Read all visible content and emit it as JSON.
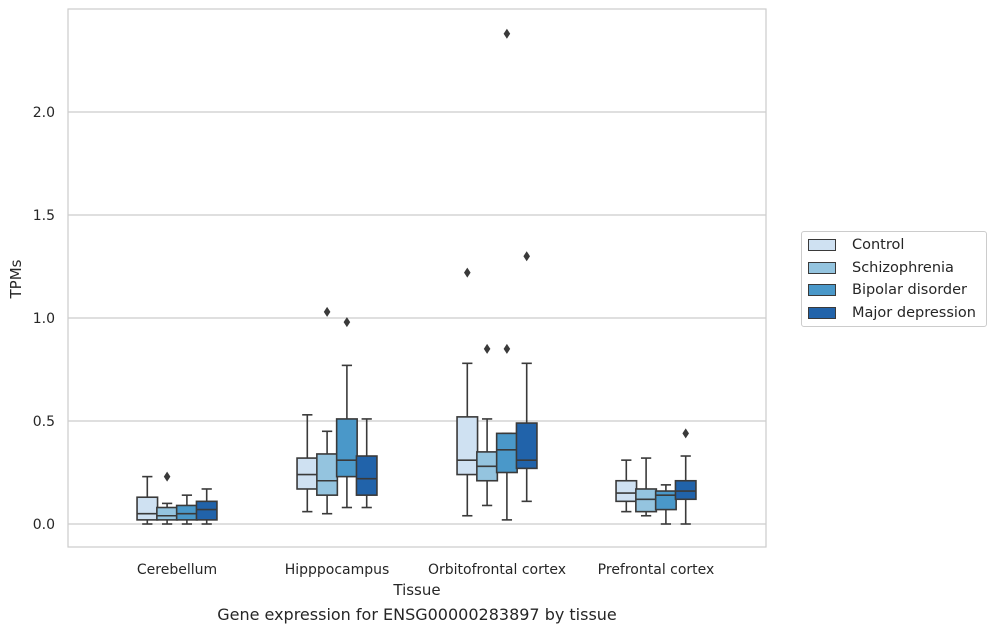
{
  "caption": "Gene expression for ENSG00000283897 by tissue",
  "colors": {
    "Control": "#cfe1f2",
    "Schizophrenia": "#94c4df",
    "Bipolar disorder": "#4a98c9",
    "Major depression": "#2163aa",
    "line": "#3a3a3a",
    "grid": "#cccccc"
  },
  "chart_data": {
    "type": "box",
    "xlabel": "Tissue",
    "ylabel": "TPMs",
    "ylim": [
      -0.12,
      2.5
    ],
    "yticks": [
      "0.0",
      "0.5",
      "1.0",
      "1.5",
      "2.0"
    ],
    "grid": "horizontal",
    "legend_position": "right-outside",
    "categories": [
      "Cerebellum",
      "Hipppocampus",
      "Orbitofrontal cortex",
      "Prefrontal cortex"
    ],
    "series": [
      {
        "name": "Control",
        "boxes": [
          {
            "whislo": 0.0,
            "q1": 0.02,
            "med": 0.05,
            "q3": 0.13,
            "whishi": 0.23,
            "fliers": []
          },
          {
            "whislo": 0.06,
            "q1": 0.17,
            "med": 0.24,
            "q3": 0.32,
            "whishi": 0.53,
            "fliers": []
          },
          {
            "whislo": 0.04,
            "q1": 0.24,
            "med": 0.31,
            "q3": 0.52,
            "whishi": 0.78,
            "fliers": [
              1.22
            ]
          },
          {
            "whislo": 0.06,
            "q1": 0.11,
            "med": 0.15,
            "q3": 0.21,
            "whishi": 0.31,
            "fliers": []
          }
        ]
      },
      {
        "name": "Schizophrenia",
        "boxes": [
          {
            "whislo": 0.0,
            "q1": 0.02,
            "med": 0.04,
            "q3": 0.08,
            "whishi": 0.1,
            "fliers": [
              0.23
            ]
          },
          {
            "whislo": 0.05,
            "q1": 0.14,
            "med": 0.21,
            "q3": 0.34,
            "whishi": 0.45,
            "fliers": [
              1.03
            ]
          },
          {
            "whislo": 0.09,
            "q1": 0.21,
            "med": 0.28,
            "q3": 0.35,
            "whishi": 0.51,
            "fliers": [
              0.85
            ]
          },
          {
            "whislo": 0.04,
            "q1": 0.06,
            "med": 0.12,
            "q3": 0.17,
            "whishi": 0.32,
            "fliers": []
          }
        ]
      },
      {
        "name": "Bipolar disorder",
        "boxes": [
          {
            "whislo": 0.0,
            "q1": 0.02,
            "med": 0.05,
            "q3": 0.09,
            "whishi": 0.14,
            "fliers": []
          },
          {
            "whislo": 0.08,
            "q1": 0.23,
            "med": 0.31,
            "q3": 0.51,
            "whishi": 0.77,
            "fliers": [
              0.98
            ]
          },
          {
            "whislo": 0.02,
            "q1": 0.25,
            "med": 0.36,
            "q3": 0.44,
            "whishi": 0.44,
            "fliers": [
              0.85,
              2.38
            ]
          },
          {
            "whislo": 0.0,
            "q1": 0.07,
            "med": 0.14,
            "q3": 0.16,
            "whishi": 0.19,
            "fliers": []
          }
        ]
      },
      {
        "name": "Major depression",
        "boxes": [
          {
            "whislo": 0.0,
            "q1": 0.02,
            "med": 0.07,
            "q3": 0.11,
            "whishi": 0.17,
            "fliers": []
          },
          {
            "whislo": 0.08,
            "q1": 0.14,
            "med": 0.22,
            "q3": 0.33,
            "whishi": 0.51,
            "fliers": []
          },
          {
            "whislo": 0.11,
            "q1": 0.27,
            "med": 0.31,
            "q3": 0.49,
            "whishi": 0.78,
            "fliers": [
              1.3
            ]
          },
          {
            "whislo": 0.0,
            "q1": 0.12,
            "med": 0.16,
            "q3": 0.21,
            "whishi": 0.33,
            "fliers": [
              0.44
            ]
          }
        ]
      }
    ]
  }
}
